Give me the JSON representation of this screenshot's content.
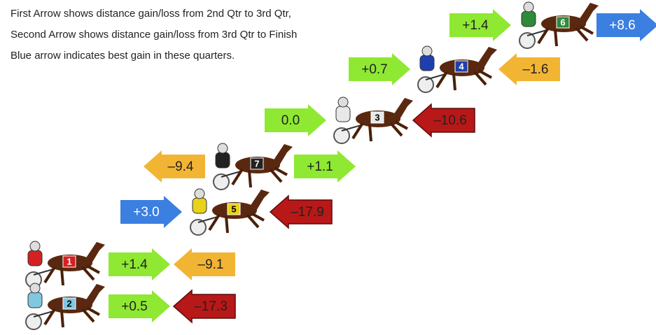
{
  "notes": [
    "First Arrow shows distance gain/loss from 2nd Qtr to 3rd Qtr,",
    "Second Arrow shows distance gain/loss from 3rd Qtr to Finish",
    "Blue arrow indicates best gain in these quarters."
  ],
  "rows": [
    {
      "horse": "6",
      "horse_color": "#2e8b3a",
      "arrows": [
        {
          "label": "+1.4",
          "color": "#8fe832"
        },
        {
          "label": "+8.6",
          "color": "#3b7fe0"
        }
      ]
    },
    {
      "horse": "4",
      "horse_color": "#1f3fb0",
      "arrows": [
        {
          "label": "+0.7",
          "color": "#8fe832"
        },
        {
          "label": "–1.6",
          "color": "#f2b533"
        }
      ]
    },
    {
      "horse": "3",
      "horse_color": "#e8e8e8",
      "arrows": [
        {
          "label": "0.0",
          "color": "#8fe832"
        },
        {
          "label": "–10.6",
          "color": "#b81818"
        }
      ]
    },
    {
      "horse": "7",
      "horse_color": "#222222",
      "arrows": [
        {
          "label": "–9.4",
          "color": "#f2b533"
        },
        {
          "label": "+1.1",
          "color": "#8fe832"
        }
      ]
    },
    {
      "horse": "5",
      "horse_color": "#e8d21a",
      "arrows": [
        {
          "label": "+3.0",
          "color": "#3b7fe0"
        },
        {
          "label": "–17.9",
          "color": "#b81818"
        }
      ]
    },
    {
      "horse": "1",
      "horse_color": "#d42020",
      "arrows": [
        {
          "label": "+1.4",
          "color": "#8fe832"
        },
        {
          "label": "–9.1",
          "color": "#f2b533"
        }
      ]
    },
    {
      "horse": "2",
      "horse_color": "#7fc8e0",
      "arrows": [
        {
          "label": "+0.5",
          "color": "#8fe832"
        },
        {
          "label": "–17.3",
          "color": "#b81818"
        }
      ]
    }
  ]
}
